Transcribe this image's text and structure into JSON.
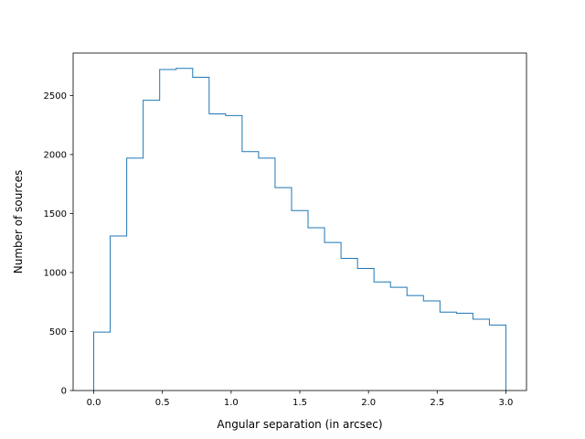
{
  "chart_data": {
    "type": "histogram",
    "xlabel": "Angular separation (in arcsec)",
    "ylabel": "Number of sources",
    "xlim": [
      -0.15,
      3.15
    ],
    "ylim": [
      0,
      2860
    ],
    "xticks": [
      0.0,
      0.5,
      1.0,
      1.5,
      2.0,
      2.5,
      3.0
    ],
    "xtick_labels": [
      "0.0",
      "0.5",
      "1.0",
      "1.5",
      "2.0",
      "2.5",
      "3.0"
    ],
    "yticks": [
      0,
      500,
      1000,
      1500,
      2000,
      2500
    ],
    "ytick_labels": [
      "0",
      "500",
      "1000",
      "1500",
      "2000",
      "2500"
    ],
    "bin_edges": [
      0.0,
      0.12,
      0.24,
      0.36,
      0.48,
      0.6,
      0.72,
      0.84,
      0.96,
      1.08,
      1.2,
      1.32,
      1.44,
      1.56,
      1.68,
      1.8,
      1.92,
      2.04,
      2.16,
      2.28,
      2.4,
      2.52,
      2.64,
      2.76,
      2.88,
      3.0
    ],
    "counts": [
      495,
      1310,
      1970,
      2460,
      2720,
      2730,
      2655,
      2345,
      2330,
      2025,
      1970,
      1720,
      1525,
      1380,
      1255,
      1120,
      1035,
      920,
      875,
      805,
      760,
      665,
      655,
      605,
      555
    ],
    "color": "#1f77b4",
    "grid": false,
    "legend": false
  }
}
